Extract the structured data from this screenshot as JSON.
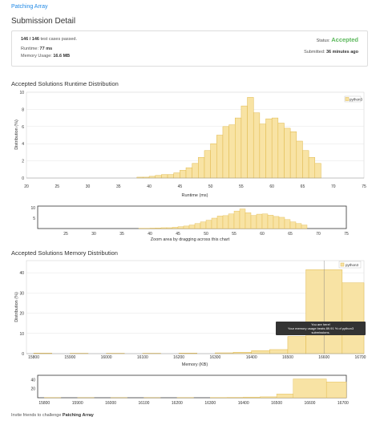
{
  "problem": {
    "link_text": "Patching Array"
  },
  "page": {
    "title": "Submission Detail"
  },
  "summary": {
    "tests_passed": "146 / 146",
    "tests_passed_suffix": " test cases passed.",
    "status_label": "Status: ",
    "status_value": "Accepted",
    "runtime_label": "Runtime: ",
    "runtime_value": "77 ms",
    "memory_label": "Memory Usage: ",
    "memory_value": "16.6 MB",
    "submitted_label": "Submitted: ",
    "submitted_value": "36 minutes ago"
  },
  "runtime_section": {
    "title": "Accepted Solutions Runtime Distribution"
  },
  "memory_section": {
    "title": "Accepted Solutions Memory Distribution"
  },
  "zoom_hint": "Zoom area by dragging across this chart",
  "tooltip": {
    "line1": "You are here!",
    "line2": "Your memory usage beats 89.91 % of python3",
    "line3": "submissions."
  },
  "footer": {
    "prefix": "Invite friends to challenge ",
    "problem": "Patching Array"
  },
  "colors": {
    "bar_fill": "#f8e3a4",
    "bar_stroke": "#e0b84a",
    "status_green": "#5cb85c",
    "link_blue": "#1e88e5"
  },
  "chart_data": [
    {
      "type": "bar",
      "name": "runtime",
      "xlabel": "Runtime (ms)",
      "ylabel": "Distribution (%)",
      "legend": "python3",
      "legend_position": "top-right",
      "xlim": [
        20,
        75
      ],
      "ylim": [
        0,
        10
      ],
      "xticks": [
        20,
        25,
        30,
        35,
        40,
        45,
        50,
        55,
        60,
        65,
        70,
        75
      ],
      "yticks": [
        0,
        2,
        4,
        6,
        8,
        10
      ],
      "bin_start": 38,
      "bin_width": 1,
      "values": [
        0.1,
        0.1,
        0.2,
        0.3,
        0.4,
        0.4,
        0.6,
        0.9,
        1.2,
        1.7,
        2.4,
        3.2,
        4.0,
        5.0,
        6.0,
        6.2,
        7.0,
        8.4,
        9.4,
        7.6,
        6.3,
        6.9,
        7.0,
        6.4,
        5.8,
        5.4,
        4.3,
        3.2,
        2.4,
        1.7
      ],
      "mini_yticks": [
        5,
        10
      ]
    },
    {
      "type": "bar",
      "name": "memory",
      "xlabel": "Memory (KB)",
      "ylabel": "Distribution (%)",
      "legend": "python3",
      "legend_position": "top-right",
      "xlim": [
        15780,
        16710
      ],
      "ylim": [
        0,
        46
      ],
      "xticks": [
        15800,
        15900,
        16000,
        16100,
        16200,
        16300,
        16400,
        16500,
        16600,
        16700
      ],
      "yticks": [
        0,
        10,
        20,
        30,
        40
      ],
      "bins": [
        {
          "start": 15800,
          "end": 15850,
          "value": 0.3
        },
        {
          "start": 15900,
          "end": 15950,
          "value": 0.2
        },
        {
          "start": 16000,
          "end": 16050,
          "value": 0.2
        },
        {
          "start": 16100,
          "end": 16150,
          "value": 0.2
        },
        {
          "start": 16200,
          "end": 16250,
          "value": 0.3
        },
        {
          "start": 16300,
          "end": 16350,
          "value": 0.4
        },
        {
          "start": 16350,
          "end": 16400,
          "value": 0.7
        },
        {
          "start": 16400,
          "end": 16450,
          "value": 1.5
        },
        {
          "start": 16450,
          "end": 16500,
          "value": 2.0
        },
        {
          "start": 16500,
          "end": 16550,
          "value": 8.5
        },
        {
          "start": 16550,
          "end": 16650,
          "value": 41.5
        },
        {
          "start": 16650,
          "end": 16710,
          "value": 35.0
        }
      ],
      "marker_x": 16600,
      "mini_yticks": [
        20,
        40
      ]
    }
  ]
}
